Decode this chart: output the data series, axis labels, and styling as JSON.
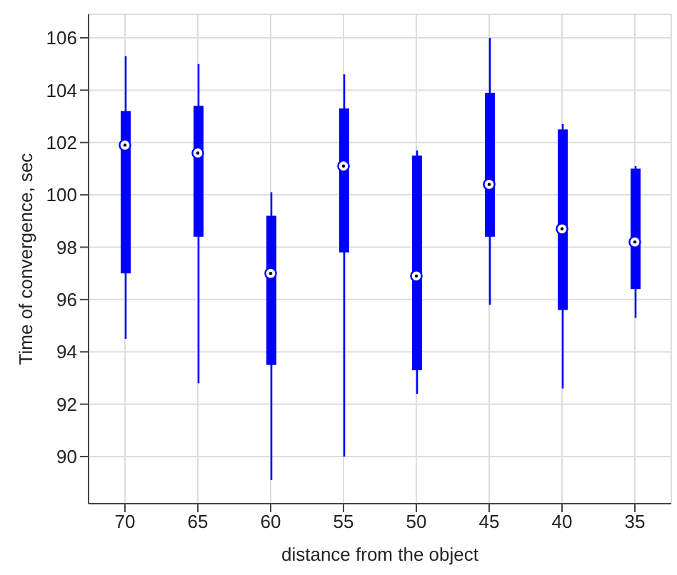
{
  "chart_data": {
    "type": "box",
    "xlabel": "distance from the object",
    "ylabel": "Time of convergence, sec",
    "categories": [
      "70",
      "65",
      "60",
      "55",
      "50",
      "45",
      "40",
      "35"
    ],
    "color": "#0000ff",
    "boxes": [
      {
        "low": 94.5,
        "q1": 97.0,
        "median": 101.9,
        "q3": 103.2,
        "high": 105.3
      },
      {
        "low": 92.8,
        "q1": 98.4,
        "median": 101.6,
        "q3": 103.4,
        "high": 105.0
      },
      {
        "low": 89.1,
        "q1": 93.5,
        "median": 97.0,
        "q3": 99.2,
        "high": 100.1
      },
      {
        "low": 90.0,
        "q1": 97.8,
        "median": 101.1,
        "q3": 103.3,
        "high": 104.6
      },
      {
        "low": 92.4,
        "q1": 93.3,
        "median": 96.9,
        "q3": 101.5,
        "high": 101.7
      },
      {
        "low": 95.8,
        "q1": 98.4,
        "median": 100.4,
        "q3": 103.9,
        "high": 106.0
      },
      {
        "low": 92.6,
        "q1": 95.6,
        "median": 98.7,
        "q3": 102.5,
        "high": 102.7
      },
      {
        "low": 95.3,
        "q1": 96.4,
        "median": 98.2,
        "q3": 101.0,
        "high": 101.1
      }
    ],
    "ylim": [
      88.2,
      106.9
    ],
    "yticks": [
      90,
      92,
      94,
      96,
      98,
      100,
      102,
      104,
      106
    ],
    "grid": true
  }
}
